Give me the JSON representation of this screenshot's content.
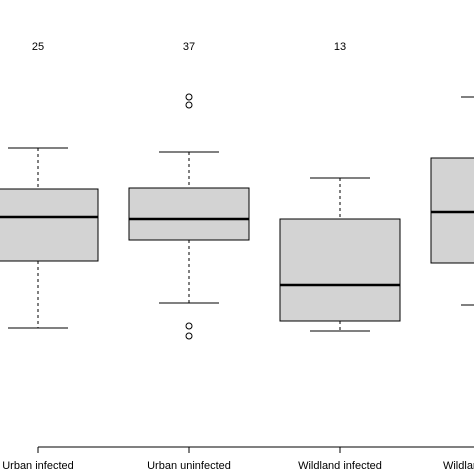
{
  "chart_data": {
    "type": "box",
    "categories": [
      "Urban infected",
      "Urban uninfected",
      "Wildland infected",
      "Wildland uninfected"
    ],
    "counts": [
      25,
      37,
      13,
      null
    ],
    "whisker_low": [
      146,
      171,
      143,
      169
    ],
    "q1": [
      213,
      234,
      153,
      211
    ],
    "median": [
      257,
      255,
      189,
      262
    ],
    "q3": [
      285,
      286,
      255,
      316
    ],
    "whisker_high": [
      326,
      322,
      296,
      377
    ],
    "outliers": [
      [],
      [
        377,
        369,
        148,
        138
      ],
      [],
      []
    ],
    "color": "#d3d3d3",
    "ylim": [
      0,
      474
    ]
  }
}
